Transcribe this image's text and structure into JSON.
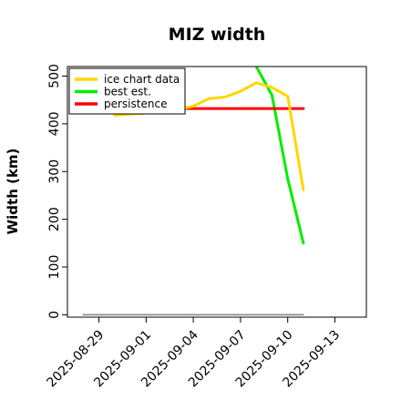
{
  "chart_data": {
    "type": "line",
    "title": "MIZ width",
    "xlabel": "",
    "ylabel": "Width (km)",
    "ylim": [
      -5,
      520
    ],
    "xlim": [
      "2025-08-27",
      "2025-09-15"
    ],
    "x_ticks": [
      "2025-08-29",
      "2025-09-01",
      "2025-09-04",
      "2025-09-07",
      "2025-09-10",
      "2025-09-13"
    ],
    "y_ticks": [
      0,
      100,
      200,
      300,
      400,
      500
    ],
    "legend_position": "top-left",
    "series": [
      {
        "name": "ice chart data",
        "color": "#FFD700",
        "x": [
          "2025-08-30",
          "2025-09-02",
          "2025-09-03",
          "2025-09-04",
          "2025-09-05",
          "2025-09-06",
          "2025-09-07",
          "2025-09-08",
          "2025-09-09",
          "2025-09-10",
          "2025-09-11"
        ],
        "y": [
          418,
          425,
          430,
          437,
          453,
          456,
          468,
          486,
          476,
          458,
          262
        ]
      },
      {
        "name": "best est.",
        "color": "#00EE00",
        "x": [
          "2025-09-08",
          "2025-09-09",
          "2025-09-10",
          "2025-09-11"
        ],
        "y": [
          520,
          460,
          285,
          150
        ]
      },
      {
        "name": "persistence",
        "color": "#FF0000",
        "x": [
          "2025-09-03",
          "2025-09-11"
        ],
        "y": [
          432,
          432
        ]
      },
      {
        "name": "",
        "color": "#808080",
        "x": [
          "2025-08-28",
          "2025-09-11"
        ],
        "y": [
          0,
          0
        ]
      }
    ]
  }
}
